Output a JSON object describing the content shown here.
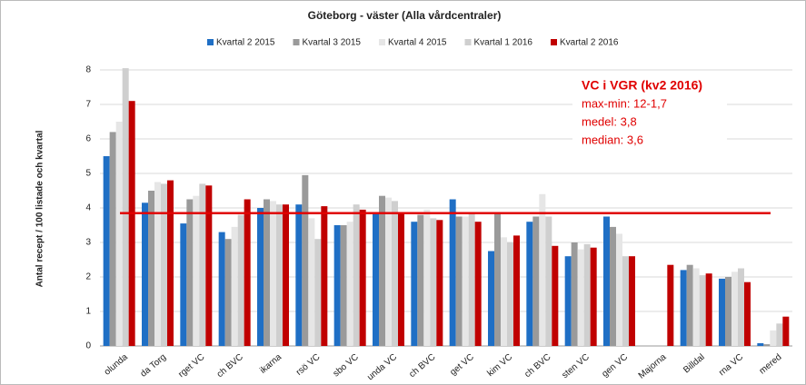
{
  "chart_data": {
    "type": "bar",
    "title": "Göteborg - väster (Alla vårdcentraler)",
    "y_label": "Antal recept / 100 listade och kvartal",
    "categories": [
      "olunda",
      "da Torg",
      "rget VC",
      "ch BVC",
      "ikarna",
      "rsö VC",
      "sbo VC",
      "unda VC",
      "ch BVC",
      "get VC",
      "kim VC",
      "ch BVC",
      "sten VC",
      "gen VC",
      "Majorna",
      "Billdal",
      "rna VC",
      "mered"
    ],
    "series": [
      {
        "name": "Kvartal 2 2015",
        "color": "#1f6fc5",
        "values": [
          5.5,
          4.15,
          3.55,
          3.3,
          4.0,
          4.1,
          3.5,
          3.85,
          3.6,
          4.25,
          2.75,
          3.6,
          2.6,
          3.75,
          null,
          2.2,
          1.95,
          0.08
        ]
      },
      {
        "name": "Kvartal 3 2015",
        "color": "#9a9a9a",
        "values": [
          6.2,
          4.5,
          4.25,
          3.1,
          4.25,
          4.95,
          3.5,
          4.35,
          3.8,
          3.75,
          3.85,
          3.75,
          3.0,
          3.45,
          null,
          2.35,
          2.0,
          0.05
        ]
      },
      {
        "name": "Kvartal 4 2015",
        "color": "#e6e6e6",
        "values": [
          6.5,
          4.75,
          4.35,
          3.45,
          4.2,
          3.7,
          3.6,
          4.3,
          3.95,
          3.75,
          3.15,
          4.4,
          2.8,
          3.25,
          null,
          2.25,
          2.15,
          0.45
        ]
      },
      {
        "name": "Kvartal 1 2016",
        "color": "#cfcfcf",
        "values": [
          8.05,
          4.7,
          4.7,
          3.8,
          4.1,
          3.1,
          4.1,
          4.2,
          3.7,
          3.85,
          3.0,
          3.75,
          2.95,
          2.6,
          null,
          2.05,
          2.25,
          0.65
        ]
      },
      {
        "name": "Kvartal 2 2016",
        "color": "#c00000",
        "values": [
          7.1,
          4.8,
          4.65,
          4.25,
          4.1,
          4.05,
          3.95,
          3.85,
          3.65,
          3.6,
          3.2,
          2.9,
          2.85,
          2.6,
          2.35,
          2.1,
          1.85,
          0.85
        ]
      }
    ],
    "ylim": [
      0,
      8
    ],
    "yticks": [
      0,
      1,
      2,
      3,
      4,
      5,
      6,
      7,
      8
    ],
    "grid": true,
    "reference_line": {
      "value": 3.85,
      "color": "#e00000"
    },
    "annotation": {
      "title": "VC i VGR (kv2 2016)",
      "lines": [
        "max-min: 12-1,7",
        "medel: 3,8",
        "median: 3,6"
      ],
      "color": "#e00000"
    }
  }
}
